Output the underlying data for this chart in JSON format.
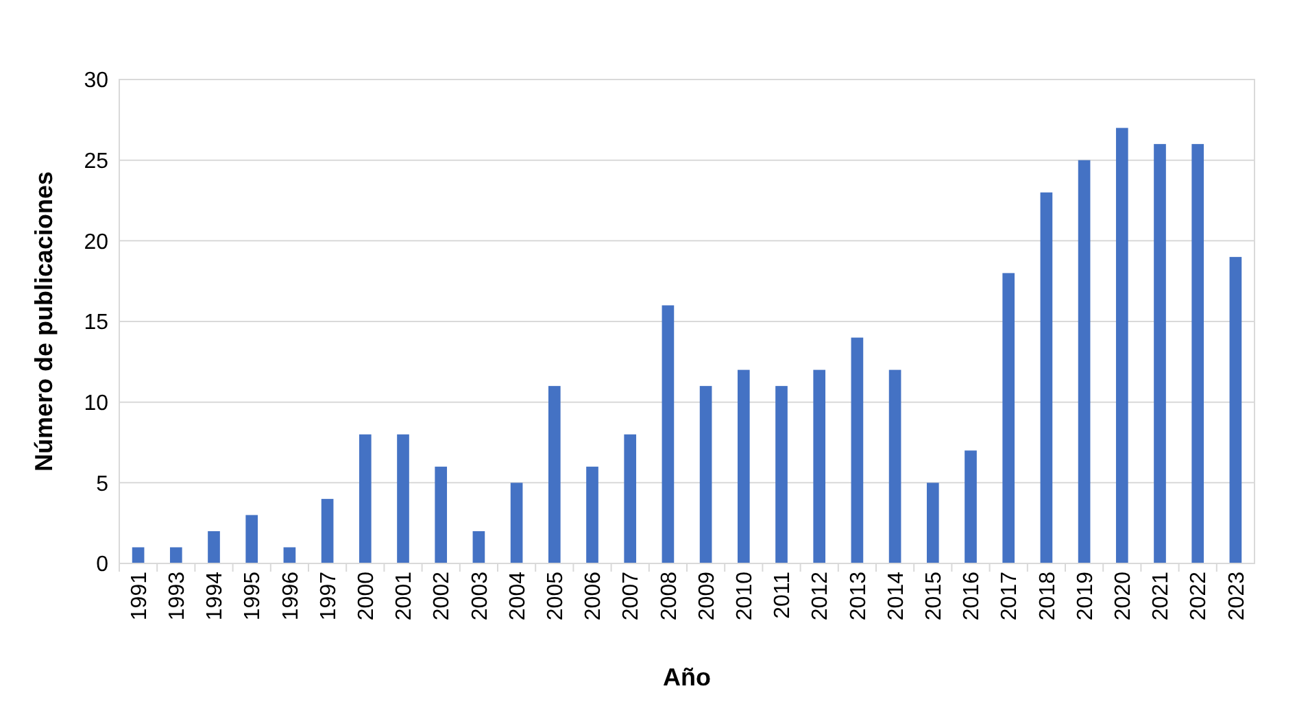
{
  "chart_data": {
    "type": "bar",
    "xlabel": "Año",
    "ylabel": "Número de publicaciones",
    "categories": [
      "1991",
      "1993",
      "1994",
      "1995",
      "1996",
      "1997",
      "2000",
      "2001",
      "2002",
      "2003",
      "2004",
      "2005",
      "2006",
      "2007",
      "2008",
      "2009",
      "2010",
      "2011",
      "2012",
      "2013",
      "2014",
      "2015",
      "2016",
      "2017",
      "2018",
      "2019",
      "2020",
      "2021",
      "2022",
      "2023"
    ],
    "values": [
      1,
      1,
      2,
      3,
      1,
      4,
      8,
      8,
      6,
      2,
      5,
      11,
      6,
      8,
      16,
      11,
      12,
      11,
      12,
      14,
      12,
      5,
      7,
      18,
      23,
      25,
      27,
      26,
      26,
      19
    ],
    "color": "#4472c4",
    "ylim": [
      0,
      30
    ],
    "yticks": [
      0,
      5,
      10,
      15,
      20,
      25,
      30
    ],
    "grid": "y"
  }
}
